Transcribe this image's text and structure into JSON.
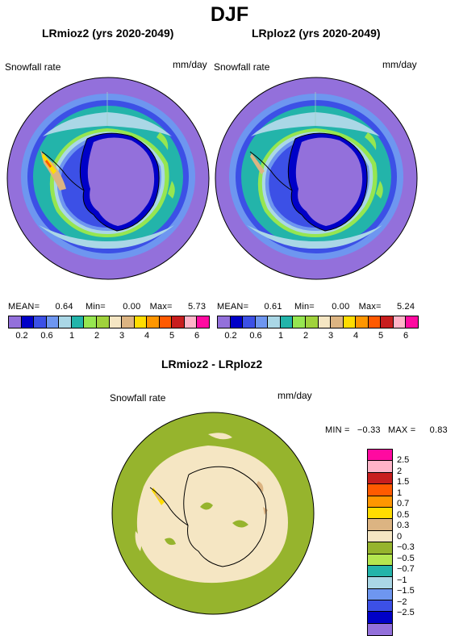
{
  "header": {
    "season": "DJF"
  },
  "panels": [
    {
      "title": "LRmioz2 (yrs 2020-2049)",
      "var_label": "Snowfall rate",
      "unit": "mm/day",
      "stats": {
        "mean_label": "MEAN=",
        "mean": "0.64",
        "min_label": "Min=",
        "min": "0.00",
        "max_label": "Max=",
        "max": "5.73"
      }
    },
    {
      "title": "LRploz2 (yrs 2020-2049)",
      "var_label": "Snowfall rate",
      "unit": "mm/day",
      "stats": {
        "mean_label": "MEAN=",
        "mean": "0.61",
        "min_label": "Min=",
        "min": "0.00",
        "max_label": "Max=",
        "max": "5.24"
      }
    }
  ],
  "colorbar_h": {
    "colors": [
      "#9370db",
      "#0000c8",
      "#3c50e6",
      "#6e96f0",
      "#aad7e6",
      "#23b4aa",
      "#96e650",
      "#a0d23c",
      "#f5e6c3",
      "#dcb482",
      "#ffdc00",
      "#ff9600",
      "#ff5a00",
      "#c81e1e",
      "#ffb4c8",
      "#ff0aa0"
    ],
    "labels": [
      "0.2",
      "0.6",
      "1",
      "2",
      "3",
      "4",
      "5",
      "6"
    ]
  },
  "diff": {
    "title": "LRmioz2 - LRploz2",
    "var_label": "Snowfall rate",
    "unit": "mm/day",
    "stats": {
      "min_label": "MIN =",
      "min": "−0.33",
      "max_label": "MAX =",
      "max": "0.83"
    }
  },
  "colorbar_v": {
    "colors": [
      "#ff0aa0",
      "#ffb4c8",
      "#c81e1e",
      "#ff5a00",
      "#ff9600",
      "#ffdc00",
      "#dcb482",
      "#f5e6c3",
      "#96b42d",
      "#b4e650",
      "#23b4aa",
      "#aad7e6",
      "#6e96f0",
      "#3c50e6",
      "#0000c8",
      "#9370db"
    ],
    "labels": [
      "2.5",
      "2",
      "1.5",
      "1",
      "0.7",
      "0.5",
      "0.3",
      "0",
      "−0.3",
      "−0.5",
      "−0.7",
      "−1",
      "−1.5",
      "−2",
      "−2.5"
    ]
  }
}
